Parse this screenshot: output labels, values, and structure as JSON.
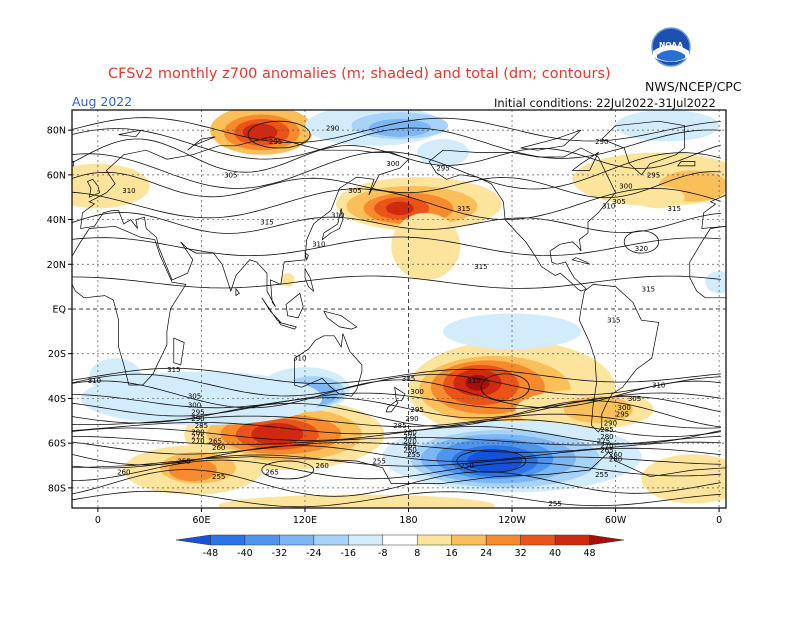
{
  "title": {
    "line": "CFSv2 monthly z700 anomalies (m; shaded) and total (dm; contours)",
    "agency": "NWS/NCEP/CPC",
    "month": "Aug 2022",
    "initial_conditions": "Initial conditions: 22Jul2022-31Jul2022",
    "logo_text": "NOAA"
  },
  "map": {
    "lon_ticks": [
      "0",
      "60E",
      "120E",
      "180",
      "120W",
      "60W",
      "0"
    ],
    "lat_ticks": [
      "80N",
      "60N",
      "40N",
      "20N",
      "EQ",
      "20S",
      "40S",
      "60S",
      "80S"
    ]
  },
  "colorbar": {
    "labels": [
      "-48",
      "-40",
      "-32",
      "-24",
      "-16",
      "-8",
      "8",
      "16",
      "24",
      "32",
      "40",
      "48"
    ],
    "colors": [
      "#1452d9",
      "#2a73e8",
      "#4f95f0",
      "#7cb6f5",
      "#a8d3f8",
      "#d2ecfb",
      "#ffffff",
      "#fde49c",
      "#fbbf5a",
      "#f78a2c",
      "#eb5418",
      "#cf2a10",
      "#a80f0a"
    ]
  },
  "contour_labels": [
    {
      "value": "290",
      "lon": 136,
      "lat": 81
    },
    {
      "value": "295",
      "lon": 103,
      "lat": 75
    },
    {
      "value": "305",
      "lon": 77,
      "lat": 60
    },
    {
      "value": "310",
      "lon": 18,
      "lat": 53
    },
    {
      "value": "315",
      "lon": 98,
      "lat": 39
    },
    {
      "value": "310",
      "lon": 128,
      "lat": 29
    },
    {
      "value": "305",
      "lon": 149,
      "lat": 53
    },
    {
      "value": "310",
      "lon": 139,
      "lat": 42
    },
    {
      "value": "300",
      "lon": 171,
      "lat": 65
    },
    {
      "value": "295",
      "lon": 200,
      "lat": 63
    },
    {
      "value": "315",
      "lon": 212,
      "lat": 45
    },
    {
      "value": "315",
      "lon": 222,
      "lat": 19
    },
    {
      "value": "290",
      "lon": 292,
      "lat": 75
    },
    {
      "value": "300",
      "lon": 306,
      "lat": 55
    },
    {
      "value": "295",
      "lon": 322,
      "lat": 60
    },
    {
      "value": "305",
      "lon": 302,
      "lat": 48
    },
    {
      "value": "310",
      "lon": 296,
      "lat": 46
    },
    {
      "value": "315",
      "lon": 334,
      "lat": 45
    },
    {
      "value": "320",
      "lon": 315,
      "lat": 27
    },
    {
      "value": "315",
      "lon": 319,
      "lat": 9
    },
    {
      "value": "315",
      "lon": 299,
      "lat": -5
    },
    {
      "value": "310",
      "lon": 117,
      "lat": -22
    },
    {
      "value": "315",
      "lon": 44,
      "lat": -27
    },
    {
      "value": "310",
      "lon": -2,
      "lat": -32
    },
    {
      "value": "305",
      "lon": 56,
      "lat": -39
    },
    {
      "value": "300",
      "lon": 56,
      "lat": -43
    },
    {
      "value": "295",
      "lon": 58,
      "lat": -46
    },
    {
      "value": "290",
      "lon": 58,
      "lat": -49
    },
    {
      "value": "285",
      "lon": 60,
      "lat": -52
    },
    {
      "value": "280",
      "lon": 58,
      "lat": -55
    },
    {
      "value": "275",
      "lon": 58,
      "lat": -57
    },
    {
      "value": "270",
      "lon": 58,
      "lat": -59
    },
    {
      "value": "265",
      "lon": 68,
      "lat": -59
    },
    {
      "value": "260",
      "lon": 70,
      "lat": -62
    },
    {
      "value": "255",
      "lon": 50,
      "lat": -68
    },
    {
      "value": "260",
      "lon": 15,
      "lat": -73
    },
    {
      "value": "255",
      "lon": 70,
      "lat": -75
    },
    {
      "value": "265",
      "lon": 101,
      "lat": -73
    },
    {
      "value": "260",
      "lon": 130,
      "lat": -70
    },
    {
      "value": "255",
      "lon": 163,
      "lat": -68
    },
    {
      "value": "305",
      "lon": 180,
      "lat": -31
    },
    {
      "value": "300",
      "lon": 185,
      "lat": -37
    },
    {
      "value": "295",
      "lon": 185,
      "lat": -45
    },
    {
      "value": "290",
      "lon": 182,
      "lat": -49
    },
    {
      "value": "285",
      "lon": 175,
      "lat": -52
    },
    {
      "value": "280",
      "lon": 181,
      "lat": -55
    },
    {
      "value": "275",
      "lon": 181,
      "lat": -57
    },
    {
      "value": "270",
      "lon": 181,
      "lat": -59
    },
    {
      "value": "265",
      "lon": 181,
      "lat": -61
    },
    {
      "value": "260",
      "lon": 181,
      "lat": -63
    },
    {
      "value": "255",
      "lon": 183,
      "lat": -65
    },
    {
      "value": "250",
      "lon": 214,
      "lat": -70
    },
    {
      "value": "310",
      "lon": 218,
      "lat": -32
    },
    {
      "value": "310",
      "lon": 325,
      "lat": -34
    },
    {
      "value": "305",
      "lon": 311,
      "lat": -40
    },
    {
      "value": "300",
      "lon": 305,
      "lat": -44
    },
    {
      "value": "295",
      "lon": 304,
      "lat": -47
    },
    {
      "value": "290",
      "lon": 297,
      "lat": -51
    },
    {
      "value": "285",
      "lon": 295,
      "lat": -54
    },
    {
      "value": "280",
      "lon": 295,
      "lat": -57
    },
    {
      "value": "275",
      "lon": 293,
      "lat": -59
    },
    {
      "value": "270",
      "lon": 295,
      "lat": -61
    },
    {
      "value": "265",
      "lon": 295,
      "lat": -63
    },
    {
      "value": "260",
      "lon": 300,
      "lat": -65
    },
    {
      "value": "280",
      "lon": 300,
      "lat": -67
    },
    {
      "value": "255",
      "lon": 292,
      "lat": -74
    },
    {
      "value": "255",
      "lon": 265,
      "lat": -87
    }
  ]
}
